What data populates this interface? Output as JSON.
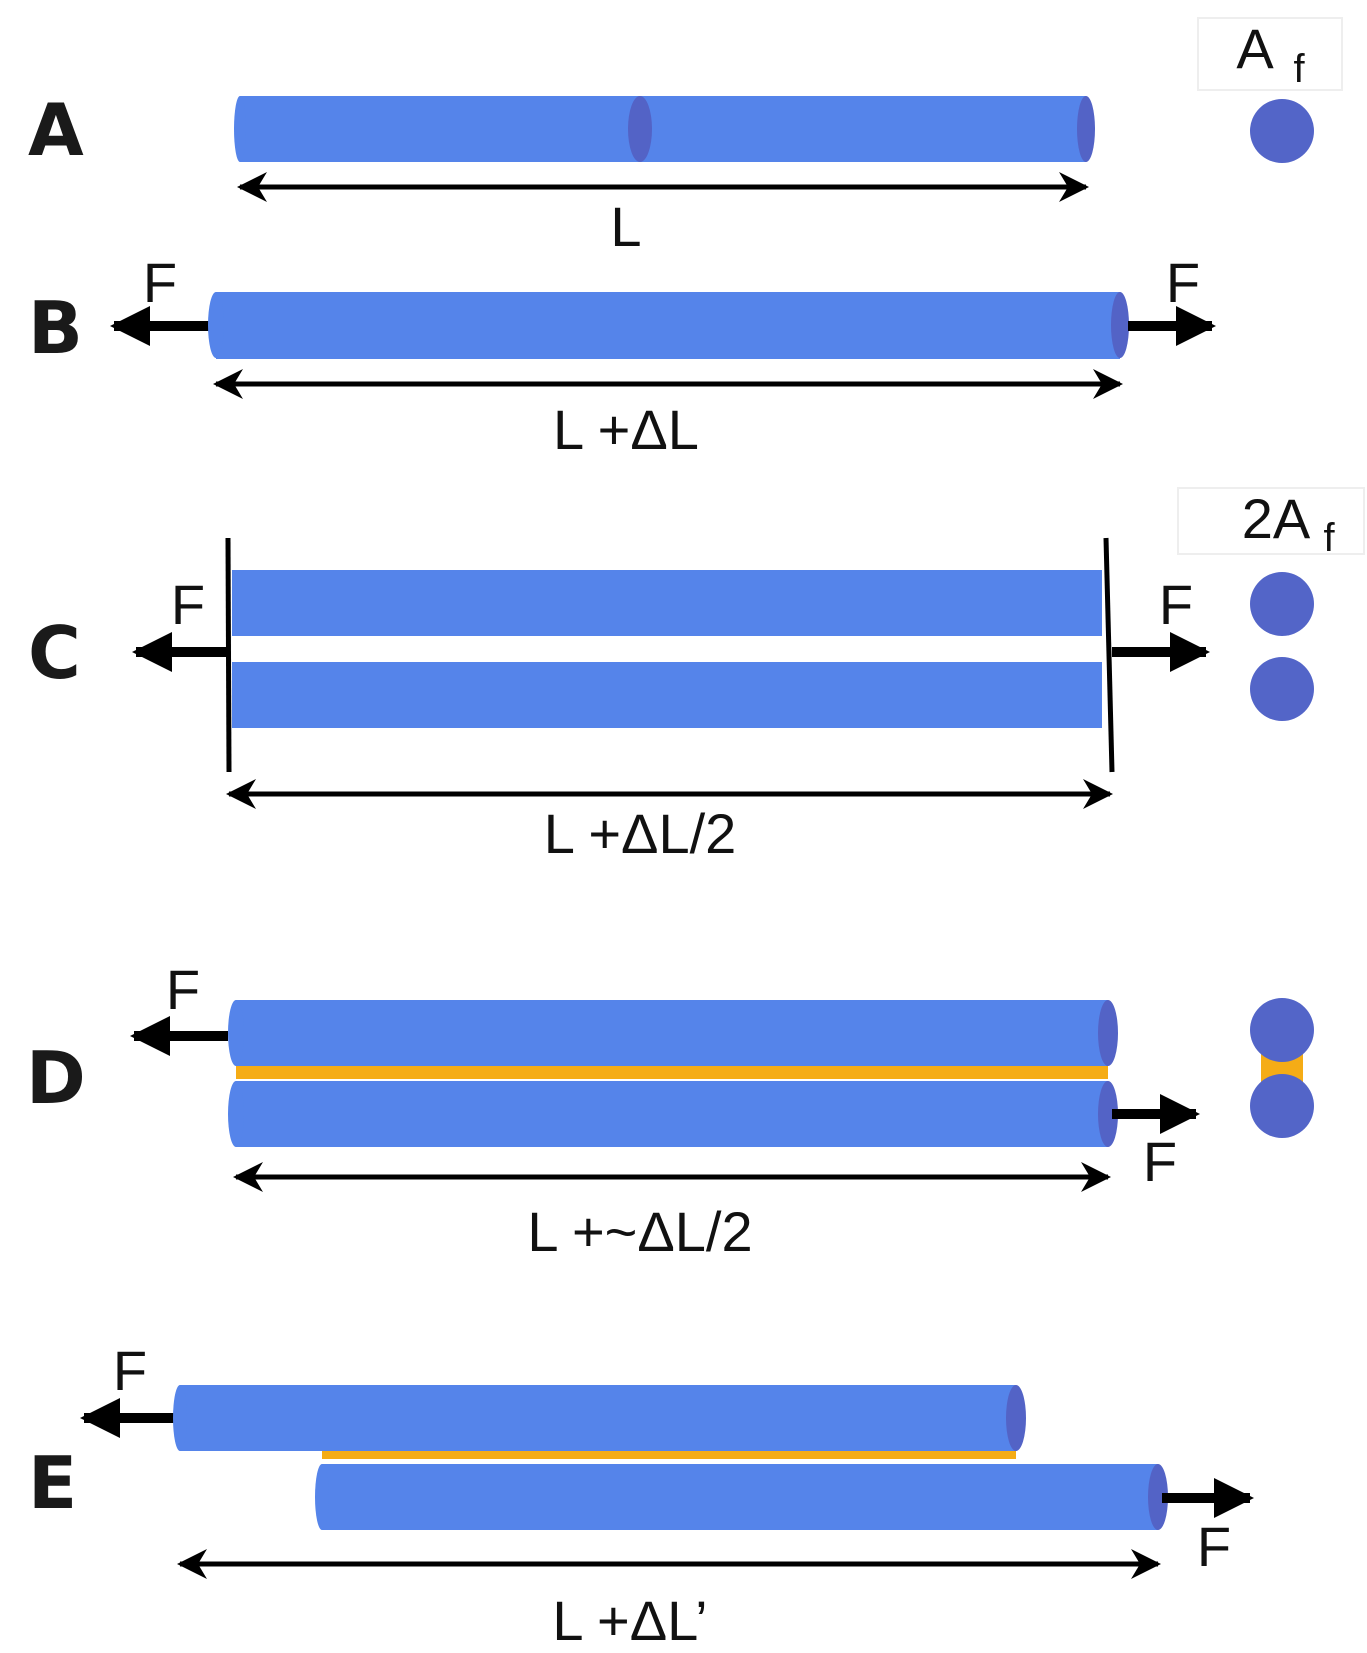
{
  "colors": {
    "fiber": "#5584ea",
    "fiber_end": "#5363c6",
    "cross_section": "#5365c8",
    "crosslink": "#f5ac16",
    "arrow": "#000000"
  },
  "panels": {
    "A": {
      "label": "A",
      "length": "L",
      "area_main": "A",
      "area_sub": "f"
    },
    "B": {
      "label": "B",
      "force_left": "F",
      "force_right": "F",
      "length": "L +ΔL"
    },
    "C": {
      "label": "C",
      "force_left": "F",
      "force_right": "F",
      "length": "L +ΔL/2",
      "area_main": "2A",
      "area_sub": "f"
    },
    "D": {
      "label": "D",
      "force_left": "F",
      "force_right": "F",
      "length": "L +~ΔL/2"
    },
    "E": {
      "label": "E",
      "force_left": "F",
      "force_right": "F",
      "length": "L +ΔL’"
    }
  }
}
